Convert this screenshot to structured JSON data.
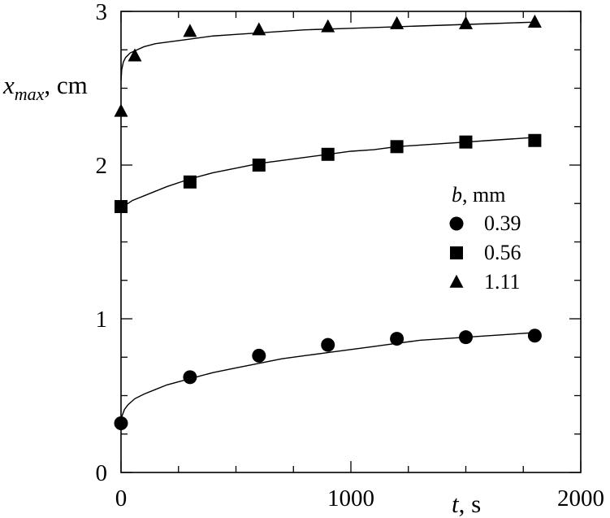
{
  "chart_data": {
    "type": "scatter",
    "title": "",
    "xlabel": {
      "symbol": "t",
      "unit": ", s"
    },
    "ylabel": {
      "symbol": "x",
      "subscript": "max",
      "unit": ", cm"
    },
    "xlim": [
      0,
      2000
    ],
    "ylim": [
      0,
      3
    ],
    "xticks_major": [
      0,
      1000,
      2000
    ],
    "xtick_labels": [
      "0",
      "1000",
      "2000"
    ],
    "xticks_minor": [
      250,
      500,
      750,
      1250,
      1500,
      1750
    ],
    "yticks_major": [
      0,
      1,
      2,
      3
    ],
    "ytick_labels": [
      "0",
      "1",
      "2",
      "3"
    ],
    "yticks_minor": [
      0.25,
      0.5,
      0.75,
      1.25,
      1.5,
      1.75,
      2.25,
      2.5,
      2.75
    ],
    "grid": false,
    "legend": {
      "title_symbol": "b",
      "title_unit": ", mm",
      "placement": "center-right"
    },
    "series": [
      {
        "name": "0.39",
        "marker": "circle",
        "x": [
          0,
          300,
          600,
          900,
          1200,
          1500,
          1800
        ],
        "y": [
          0.32,
          0.62,
          0.76,
          0.83,
          0.87,
          0.88,
          0.89
        ],
        "fit_x": [
          0,
          5,
          15,
          30,
          60,
          100,
          150,
          200,
          300,
          400,
          500,
          600,
          700,
          800,
          900,
          1000,
          1100,
          1200,
          1300,
          1400,
          1500,
          1600,
          1700,
          1800
        ],
        "fit_y": [
          0.34,
          0.37,
          0.41,
          0.44,
          0.48,
          0.51,
          0.54,
          0.57,
          0.61,
          0.65,
          0.68,
          0.71,
          0.74,
          0.76,
          0.78,
          0.8,
          0.82,
          0.84,
          0.86,
          0.87,
          0.88,
          0.89,
          0.9,
          0.91
        ]
      },
      {
        "name": "0.56",
        "marker": "square",
        "x": [
          0,
          300,
          600,
          900,
          1200,
          1500,
          1800
        ],
        "y": [
          1.73,
          1.89,
          2.0,
          2.07,
          2.12,
          2.15,
          2.16
        ],
        "fit_x": [
          0,
          50,
          100,
          200,
          300,
          400,
          500,
          600,
          700,
          800,
          900,
          1000,
          1100,
          1200,
          1300,
          1400,
          1500,
          1600,
          1700,
          1800
        ],
        "fit_y": [
          1.72,
          1.77,
          1.8,
          1.86,
          1.91,
          1.95,
          1.98,
          2.01,
          2.03,
          2.05,
          2.07,
          2.09,
          2.1,
          2.12,
          2.13,
          2.14,
          2.15,
          2.16,
          2.17,
          2.18
        ]
      },
      {
        "name": "1.11",
        "marker": "triangle",
        "x": [
          0,
          60,
          300,
          600,
          900,
          1200,
          1500,
          1800
        ],
        "y": [
          2.35,
          2.71,
          2.87,
          2.88,
          2.9,
          2.92,
          2.92,
          2.93
        ],
        "fit_x": [
          0,
          3,
          10,
          20,
          40,
          70,
          100,
          150,
          200,
          300,
          400,
          500,
          600,
          800,
          1000,
          1200,
          1400,
          1600,
          1800
        ],
        "fit_y": [
          2.55,
          2.62,
          2.67,
          2.7,
          2.73,
          2.75,
          2.77,
          2.79,
          2.8,
          2.82,
          2.84,
          2.85,
          2.86,
          2.88,
          2.89,
          2.9,
          2.91,
          2.92,
          2.93
        ]
      }
    ]
  }
}
